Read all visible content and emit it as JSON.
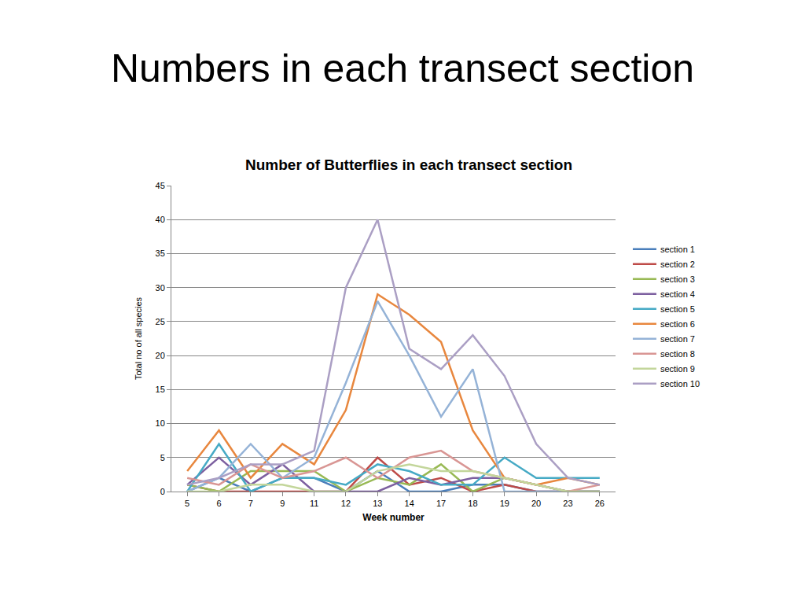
{
  "slide": {
    "heading": "Numbers in each transect section"
  },
  "chart_data": {
    "type": "line",
    "title": "Number of Butterflies in each transect section",
    "x_label": "Week number",
    "y_label": "Total no of all species",
    "categories": [
      "5",
      "6",
      "7",
      "9",
      "11",
      "12",
      "13",
      "14",
      "17",
      "18",
      "19",
      "20",
      "23",
      "26"
    ],
    "ylim": [
      0,
      45
    ],
    "yticks": [
      0,
      5,
      10,
      15,
      20,
      25,
      30,
      35,
      40,
      45
    ],
    "grid": true,
    "legend": "right",
    "series": [
      {
        "name": "section 1",
        "color": "#4a7ebb",
        "values": [
          0,
          2,
          0,
          2,
          2,
          0,
          3,
          0,
          0,
          1,
          1,
          0,
          0,
          0
        ]
      },
      {
        "name": "section 2",
        "color": "#be4b48",
        "values": [
          1,
          0,
          0,
          0,
          0,
          0,
          5,
          1,
          2,
          0,
          1,
          0,
          0,
          0
        ]
      },
      {
        "name": "section 3",
        "color": "#98b954",
        "values": [
          1,
          0,
          3,
          3,
          3,
          0,
          2,
          1,
          4,
          0,
          2,
          1,
          0,
          0
        ]
      },
      {
        "name": "section 4",
        "color": "#7d60a0",
        "values": [
          1,
          5,
          1,
          4,
          0,
          0,
          0,
          2,
          1,
          2,
          2,
          1,
          0,
          0
        ]
      },
      {
        "name": "section 5",
        "color": "#46aac5",
        "values": [
          0,
          7,
          0,
          2,
          2,
          1,
          4,
          3,
          1,
          1,
          5,
          2,
          2,
          2
        ]
      },
      {
        "name": "section 6",
        "color": "#e8873e",
        "values": [
          3,
          9,
          2,
          7,
          4,
          12,
          29,
          26,
          22,
          9,
          2,
          1,
          2,
          1
        ]
      },
      {
        "name": "section 7",
        "color": "#95b3d7",
        "values": [
          0,
          2,
          7,
          2,
          5,
          16,
          28,
          20,
          11,
          18,
          0,
          0,
          0,
          0
        ]
      },
      {
        "name": "section 8",
        "color": "#d99694",
        "values": [
          2,
          1,
          4,
          2,
          3,
          5,
          2,
          5,
          6,
          3,
          2,
          1,
          0,
          1
        ]
      },
      {
        "name": "section 9",
        "color": "#c3d69b",
        "values": [
          0,
          0,
          1,
          1,
          0,
          0,
          3,
          4,
          3,
          3,
          2,
          1,
          0,
          0
        ]
      },
      {
        "name": "section 10",
        "color": "#ab9fc4",
        "values": [
          1,
          2,
          4,
          4,
          6,
          30,
          40,
          21,
          18,
          23,
          17,
          7,
          2,
          1
        ]
      }
    ]
  }
}
